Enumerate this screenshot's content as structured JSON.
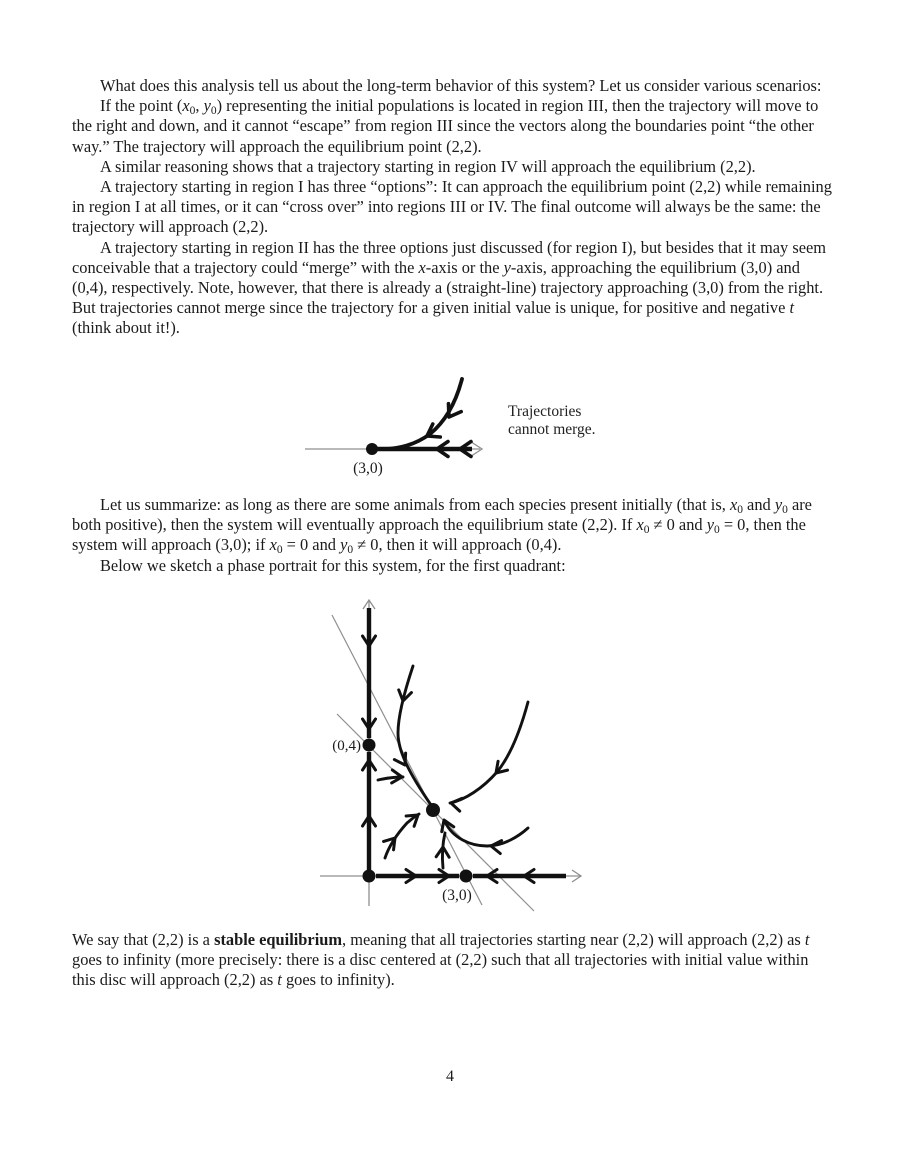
{
  "page": {
    "number": "4"
  },
  "colors": {
    "text": "#1b1b1b",
    "figure_stroke": "#111111",
    "axis_thin_gray": "#8f8f8f"
  },
  "paragraphs": [
    {
      "text": "What does this analysis tell us about the long-term behavior of this system? Let us consider various scenarios:"
    },
    {
      "text": "If the point (*x*~0~, *y*~0~) representing the initial populations is located in region III, then the trajectory will move to the right and down, and it cannot “escape” from region III since the vectors along the boundaries point “the other way.” The trajectory will approach the equilibrium point (2,2)."
    },
    {
      "text": "A similar reasoning shows that a trajectory starting in region IV will approach the equilibrium (2,2)."
    },
    {
      "text": "A trajectory starting in region I has three “options”: It can approach the equilibrium point (2,2) while remaining in region I at all times, or it can “cross over” into regions III or IV. The final outcome will always be the same: the trajectory will approach (2,2)."
    },
    {
      "text": "A trajectory starting in region II has the three options just discussed (for region I), but besides that it may seem conceivable that a trajectory could “merge” with the *x*-axis or the *y*-axis, approaching the equilibrium (3,0) and (0,4), respectively. Note, however, that there is already a (straight-line) trajectory approaching (3,0) from the right. But trajectories cannot merge since the trajectory for a given initial value is unique, for positive and negative *t* (think about it!)."
    }
  ],
  "figure1": {
    "point_label": "(3,0)",
    "caption": "Trajectories cannot merge."
  },
  "summary_paragraphs": [
    {
      "text": "Let us summarize: as long as there are some animals from each species present initially (that is, *x*~0~ and *y*~0~ are both positive), then the system will eventually approach the equilibrium state (2,2). If *x*~0~ ≠ 0 and *y*~0~ = 0, then the system will approach (3,0); if *x*~0~ = 0 and *y*~0~ ≠ 0, then it will approach (0,4)."
    },
    {
      "text": "Below we sketch a phase portrait for this system, for the first quadrant:"
    }
  ],
  "figure2": {
    "y_point_label": "(0,4)",
    "x_point_label": "(3,0)"
  },
  "closing_paragraph": {
    "text": "We say that (2,2) is a **stable equilibrium**, meaning that all trajectories starting near (2,2) will approach (2,2) as *t* goes to infinity (more precisely: there is a disc centered at (2,2) such that all trajectories with initial value within this disc will approach (2,2) as *t* goes to infinity)."
  }
}
